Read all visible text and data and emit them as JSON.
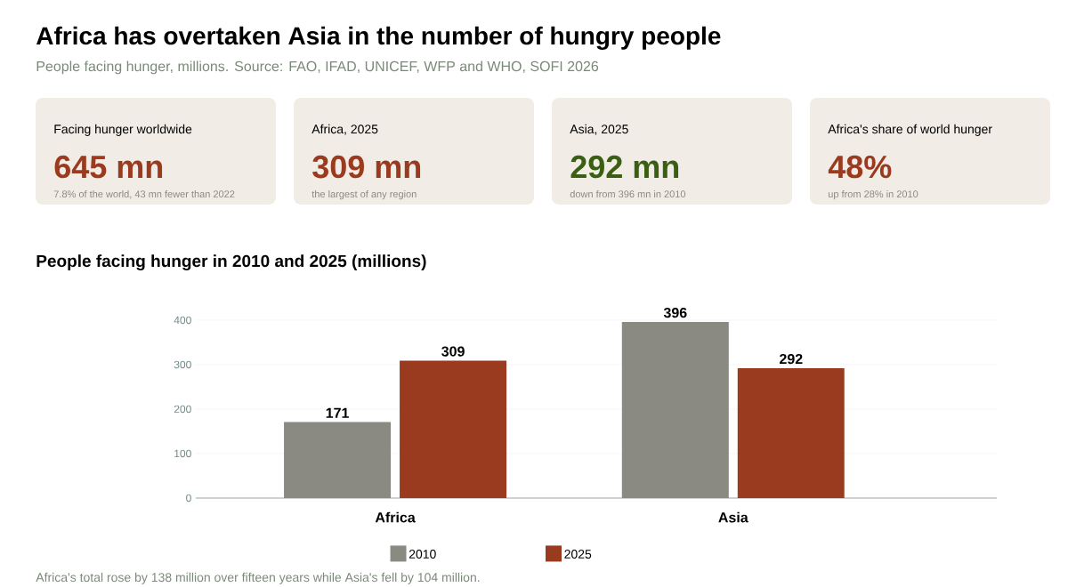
{
  "chart_data": [
    {
      "type": "other",
      "title": "Africa has overtaken Asia in the number of hungry people",
      "subtitle": "People facing hunger, millions. Source: FAO, IFAD, UNICEF, WFP and WHO, SOFI 2026"
    },
    {
      "type": "other",
      "title": "Facing hunger worldwide",
      "annotations": [
        "645 mn",
        "7.8% of the world, 43 mn fewer than 2022"
      ],
      "color": "#9a3a1f"
    },
    {
      "type": "other",
      "title": "Africa, 2025",
      "annotations": [
        "309 mn",
        "the largest of any region"
      ],
      "color": "#9a3a1f"
    },
    {
      "type": "other",
      "title": "Asia, 2025",
      "annotations": [
        "292 mn",
        "down from 396 mn in 2010"
      ],
      "color": "#3a5e12"
    },
    {
      "type": "other",
      "title": "Africa's share of world hunger",
      "annotations": [
        "48%",
        "up from 28% in 2010"
      ],
      "color": "#9a3a1f"
    },
    {
      "type": "bar",
      "title": "People facing hunger in 2010 and 2025 (millions)",
      "categories": [
        "Africa",
        "Asia"
      ],
      "series": [
        {
          "name": "2010",
          "color": "#8a8a82",
          "values": [
            171,
            396
          ]
        },
        {
          "name": "2025",
          "color": "#9a3a1f",
          "values": [
            309,
            292
          ]
        }
      ],
      "ylim": [
        0,
        400
      ],
      "yticks": [
        0,
        100,
        200,
        300,
        400
      ],
      "grid": "y",
      "legend": "bottom",
      "data_labels": true,
      "annotations": [
        "Africa's total rose by 138 million over fifteen years while Asia's fell by 104 million."
      ]
    }
  ]
}
